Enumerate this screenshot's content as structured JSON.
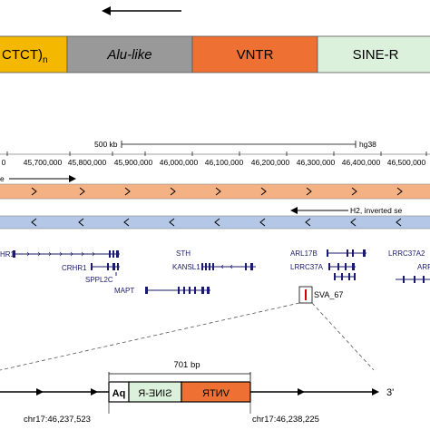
{
  "structure": {
    "segments": [
      {
        "label": "CTCT)",
        "sub": "n",
        "color": "#f5b800"
      },
      {
        "label": "Alu-like",
        "color": "#999999"
      },
      {
        "label": "VNTR",
        "color": "#ee7133"
      },
      {
        "label": "SINE-R",
        "color": "#dcf1dc"
      }
    ]
  },
  "browser": {
    "scale_label": "500 kb",
    "assembly": "hg38",
    "ticks": [
      "0",
      "45,700,000",
      "45,800,000",
      "45,900,000",
      "46,000,000",
      "46,100,000",
      "46,200,000",
      "46,300,000",
      "46,400,000",
      "46,500,000"
    ],
    "h1_label": "e",
    "h2_label": "H2, inverted se",
    "genes": [
      "HR1",
      "CRHR1",
      "SPPL2C",
      "MAPT",
      "STH",
      "KANSL1",
      "ARL17B",
      "LRRC37A",
      "LRRC37A2",
      "ARF",
      "SVA_67"
    ]
  },
  "zoom": {
    "size_label": "701 bp",
    "box_aq": "Aq",
    "box_sine": "SINE-R",
    "box_vntr": "VNTR",
    "strand": "3'",
    "left_coord": "chr17:46,237,523",
    "right_coord": "chr17:46,238,225"
  },
  "colors": {
    "h1_track": "#f4b183",
    "h2_track": "#b4c7e7",
    "vntr": "#ee7133",
    "sine": "#dcf1dc",
    "alu": "#999999",
    "ctct": "#f5b800",
    "gene": "#1a1a6e",
    "marker": "#d40000"
  }
}
